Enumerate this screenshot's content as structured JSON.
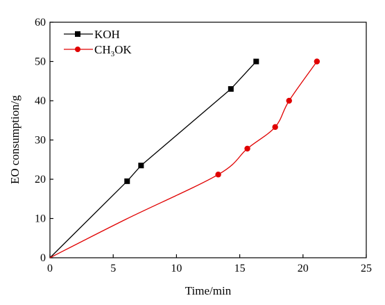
{
  "chart_data": {
    "type": "line",
    "xlabel": "Time/min",
    "ylabel": "EO consumption/g",
    "xlim": [
      0,
      25
    ],
    "ylim": [
      0,
      60
    ],
    "xticks": [
      "0",
      "5",
      "10",
      "15",
      "20",
      "25"
    ],
    "yticks": [
      "0",
      "10",
      "20",
      "30",
      "40",
      "50",
      "60"
    ],
    "grid": false,
    "legend_position": "top-left",
    "series": [
      {
        "name": "KOH",
        "color": "#000000",
        "marker": "square",
        "points": [
          [
            6.1,
            19.5
          ],
          [
            7.2,
            23.5
          ],
          [
            14.3,
            43.0
          ],
          [
            16.3,
            50.0
          ]
        ],
        "line": [
          [
            0,
            0
          ],
          [
            6.1,
            19.5
          ],
          [
            7.2,
            23.5
          ],
          [
            14.3,
            43.0
          ],
          [
            16.3,
            50.0
          ]
        ]
      },
      {
        "name_main": "CH",
        "name_sub": "3",
        "name_tail": "OK",
        "color": "#e00000",
        "marker": "circle",
        "points": [
          [
            13.3,
            21.2
          ],
          [
            15.6,
            27.8
          ],
          [
            17.8,
            33.3
          ],
          [
            18.9,
            40.0
          ],
          [
            21.1,
            50.0
          ]
        ],
        "line": [
          [
            0,
            0
          ],
          [
            6,
            9.8
          ],
          [
            13.3,
            21.2
          ],
          [
            15.6,
            27.8
          ],
          [
            17.8,
            33.3
          ],
          [
            18.9,
            40.0
          ],
          [
            21.1,
            50.0
          ]
        ]
      }
    ]
  }
}
